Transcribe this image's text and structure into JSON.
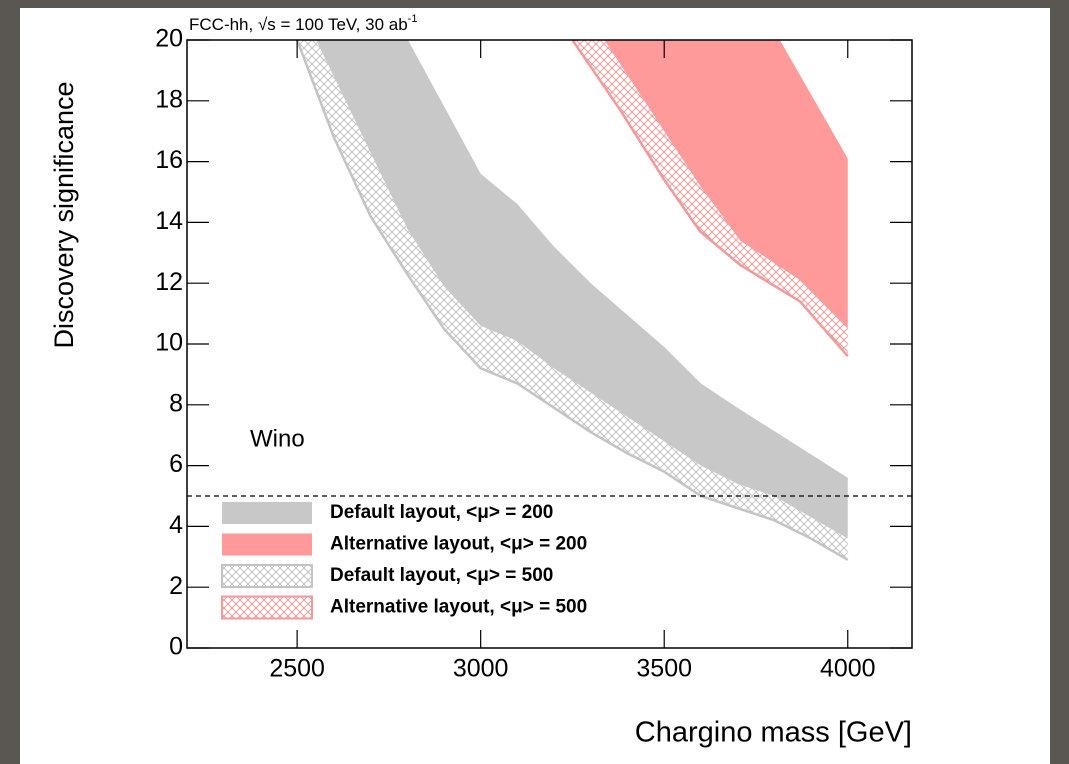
{
  "chart_data": {
    "type": "band",
    "label": "FCC-hh, √s = 100 TeV, 30 ab",
    "label_sup": "-1",
    "annotation": "Wino",
    "xlabel": "Chargino mass [GeV]",
    "ylabel": "Discovery significance",
    "xlim": [
      2200,
      4175
    ],
    "ylim": [
      0,
      20
    ],
    "xticks": [
      2500,
      3000,
      3500,
      4000
    ],
    "yticks": [
      0,
      2,
      4,
      6,
      8,
      10,
      12,
      14,
      16,
      18,
      20
    ],
    "reference_line": 5,
    "series": [
      {
        "name": "Default layout, <μ> = 500",
        "style": "hatch",
        "color": "#c4c4c4",
        "upper": {
          "x": [
            2500,
            2552,
            2700,
            2800,
            2900,
            3000,
            3100,
            3200,
            3300,
            3400,
            3500,
            3600,
            3700,
            3800,
            4000
          ],
          "y": [
            20,
            20,
            16.3,
            13.8,
            11.9,
            10.6,
            10.1,
            9.2,
            8.4,
            7.6,
            6.8,
            6.0,
            5.4,
            5.0,
            3.6
          ]
        },
        "lower": {
          "x": [
            2500,
            2600,
            2700,
            2800,
            2900,
            3000,
            3100,
            3200,
            3300,
            3400,
            3500,
            3600,
            3700,
            3800,
            3900,
            4000
          ],
          "y": [
            20,
            16.8,
            14.2,
            12.3,
            10.5,
            9.2,
            8.7,
            7.9,
            7.1,
            6.4,
            5.8,
            5.0,
            4.6,
            4.2,
            3.6,
            2.9
          ]
        }
      },
      {
        "name": "Alternative layout, <μ> = 500",
        "style": "hatch",
        "color": "#f29a9a",
        "upper": {
          "x": [
            3250,
            3337,
            3462,
            3598,
            3707,
            3870,
            4000
          ],
          "y": [
            20,
            20,
            17.7,
            15.2,
            13.4,
            12.1,
            10.5
          ]
        },
        "lower": {
          "x": [
            3250,
            3380,
            3500,
            3598,
            3707,
            3870,
            4000
          ],
          "y": [
            20,
            17.7,
            15.4,
            13.7,
            12.6,
            11.4,
            9.6
          ]
        }
      },
      {
        "name": "Default layout, <μ> = 200",
        "style": "fill",
        "color": "#c8c8c8",
        "upper": {
          "x": [
            2552,
            2802,
            3000,
            3100,
            3200,
            3300,
            3500,
            3600,
            3700,
            4000
          ],
          "y": [
            20,
            20,
            15.6,
            14.6,
            13.2,
            12.0,
            9.9,
            8.7,
            7.9,
            5.6
          ]
        },
        "lower": {
          "x": [
            2552,
            2700,
            2800,
            2900,
            3000,
            3100,
            3200,
            3300,
            3400,
            3500,
            3600,
            3700,
            3800,
            4000
          ],
          "y": [
            20,
            16.3,
            13.8,
            11.9,
            10.6,
            10.1,
            9.2,
            8.4,
            7.6,
            6.8,
            6.0,
            5.4,
            5.0,
            3.6
          ]
        }
      },
      {
        "name": "Alternative layout, <μ> = 200",
        "style": "fill",
        "color": "#ff9a9a",
        "upper": {
          "x": [
            3337,
            3815,
            4000
          ],
          "y": [
            20,
            20,
            16.1
          ]
        },
        "lower": {
          "x": [
            3337,
            3462,
            3598,
            3707,
            3870,
            4000
          ],
          "y": [
            20,
            17.7,
            15.2,
            13.4,
            12.1,
            10.5
          ]
        }
      }
    ],
    "legend_order": [
      2,
      3,
      0,
      1
    ]
  }
}
